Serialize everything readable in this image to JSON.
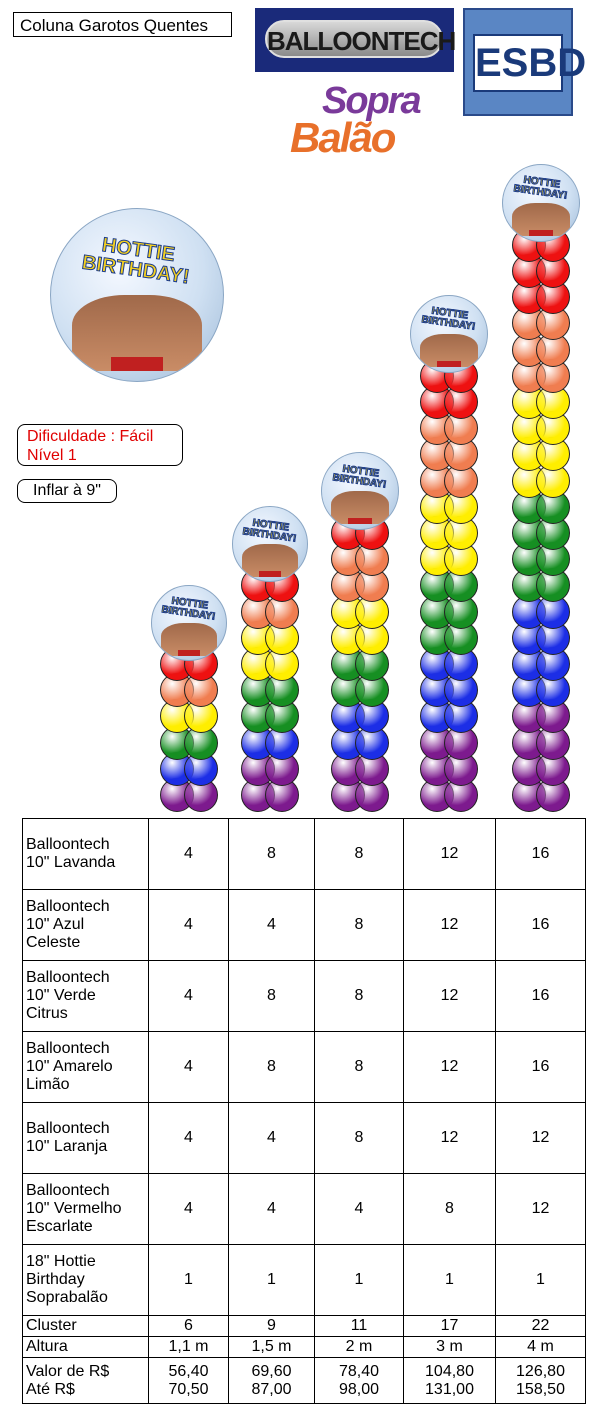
{
  "header": {
    "title": "Coluna Garotos Quentes",
    "logo_balloontech": "BALLOONTECH",
    "logo_esbd": "ESBD",
    "logo_sopra_1": "Sopra",
    "logo_sopra_2": "Balão"
  },
  "foil": {
    "text": "HOTTIE BIRTHDAY!"
  },
  "info": {
    "line1": "Dificuldade : Fácil",
    "line2": "Nível 1",
    "inflate": "Inflar à 9\""
  },
  "colors": {
    "vermelho": "#ee1111",
    "laranja": "#f07d50",
    "amarelo": "#ffee00",
    "verde": "#168f22",
    "azul": "#1c2ee6",
    "lavanda": "#7d1a8e"
  },
  "columns": [
    {
      "clusters": [
        "vermelho",
        "laranja",
        "amarelo",
        "verde",
        "azul",
        "lavanda"
      ]
    },
    {
      "clusters": [
        "vermelho",
        "laranja",
        "amarelo",
        "amarelo",
        "verde",
        "verde",
        "azul",
        "lavanda",
        "lavanda"
      ]
    },
    {
      "clusters": [
        "vermelho",
        "laranja",
        "laranja",
        "amarelo",
        "amarelo",
        "verde",
        "verde",
        "azul",
        "azul",
        "lavanda",
        "lavanda"
      ]
    },
    {
      "clusters": [
        "vermelho",
        "vermelho",
        "laranja",
        "laranja",
        "laranja",
        "amarelo",
        "amarelo",
        "amarelo",
        "verde",
        "verde",
        "verde",
        "azul",
        "azul",
        "azul",
        "lavanda",
        "lavanda",
        "lavanda"
      ]
    },
    {
      "clusters": [
        "vermelho",
        "vermelho",
        "vermelho",
        "laranja",
        "laranja",
        "laranja",
        "amarelo",
        "amarelo",
        "amarelo",
        "amarelo",
        "verde",
        "verde",
        "verde",
        "verde",
        "azul",
        "azul",
        "azul",
        "azul",
        "lavanda",
        "lavanda",
        "lavanda",
        "lavanda"
      ]
    }
  ],
  "table": {
    "rows": [
      {
        "label": [
          "Balloontech",
          "10\" Lavanda"
        ],
        "values": [
          "4",
          "8",
          "8",
          "12",
          "16"
        ]
      },
      {
        "label": [
          "Balloontech",
          "10\" Azul",
          "Celeste"
        ],
        "values": [
          "4",
          "4",
          "8",
          "12",
          "16"
        ]
      },
      {
        "label": [
          "Balloontech",
          "10\" Verde",
          "Citrus"
        ],
        "values": [
          "4",
          "8",
          "8",
          "12",
          "16"
        ]
      },
      {
        "label": [
          "Balloontech",
          "10\" Amarelo",
          "Limão"
        ],
        "values": [
          "4",
          "8",
          "8",
          "12",
          "16"
        ]
      },
      {
        "label": [
          "Balloontech",
          "10\" Laranja"
        ],
        "values": [
          "4",
          "4",
          "8",
          "12",
          "12"
        ]
      },
      {
        "label": [
          "Balloontech",
          "10\" Vermelho",
          "Escarlate"
        ],
        "values": [
          "4",
          "4",
          "4",
          "8",
          "12"
        ]
      },
      {
        "label": [
          "18\" Hottie",
          "Birthday",
          "Soprabalão"
        ],
        "values": [
          "1",
          "1",
          "1",
          "1",
          "1"
        ]
      }
    ],
    "cluster": {
      "label": "Cluster",
      "values": [
        "6",
        "9",
        "11",
        "17",
        "22"
      ]
    },
    "altura": {
      "label": "Altura",
      "values": [
        "1,1 m",
        "1,5 m",
        "2 m",
        "3 m",
        "4 m"
      ]
    },
    "valor": {
      "label": "Valor de  R$",
      "values": [
        "56,40",
        "69,60",
        "78,40",
        "104,80",
        "126,80"
      ]
    },
    "ate": {
      "label": "Até R$",
      "values": [
        "70,50",
        "87,00",
        "98,00",
        "131,00",
        "158,50"
      ]
    }
  }
}
